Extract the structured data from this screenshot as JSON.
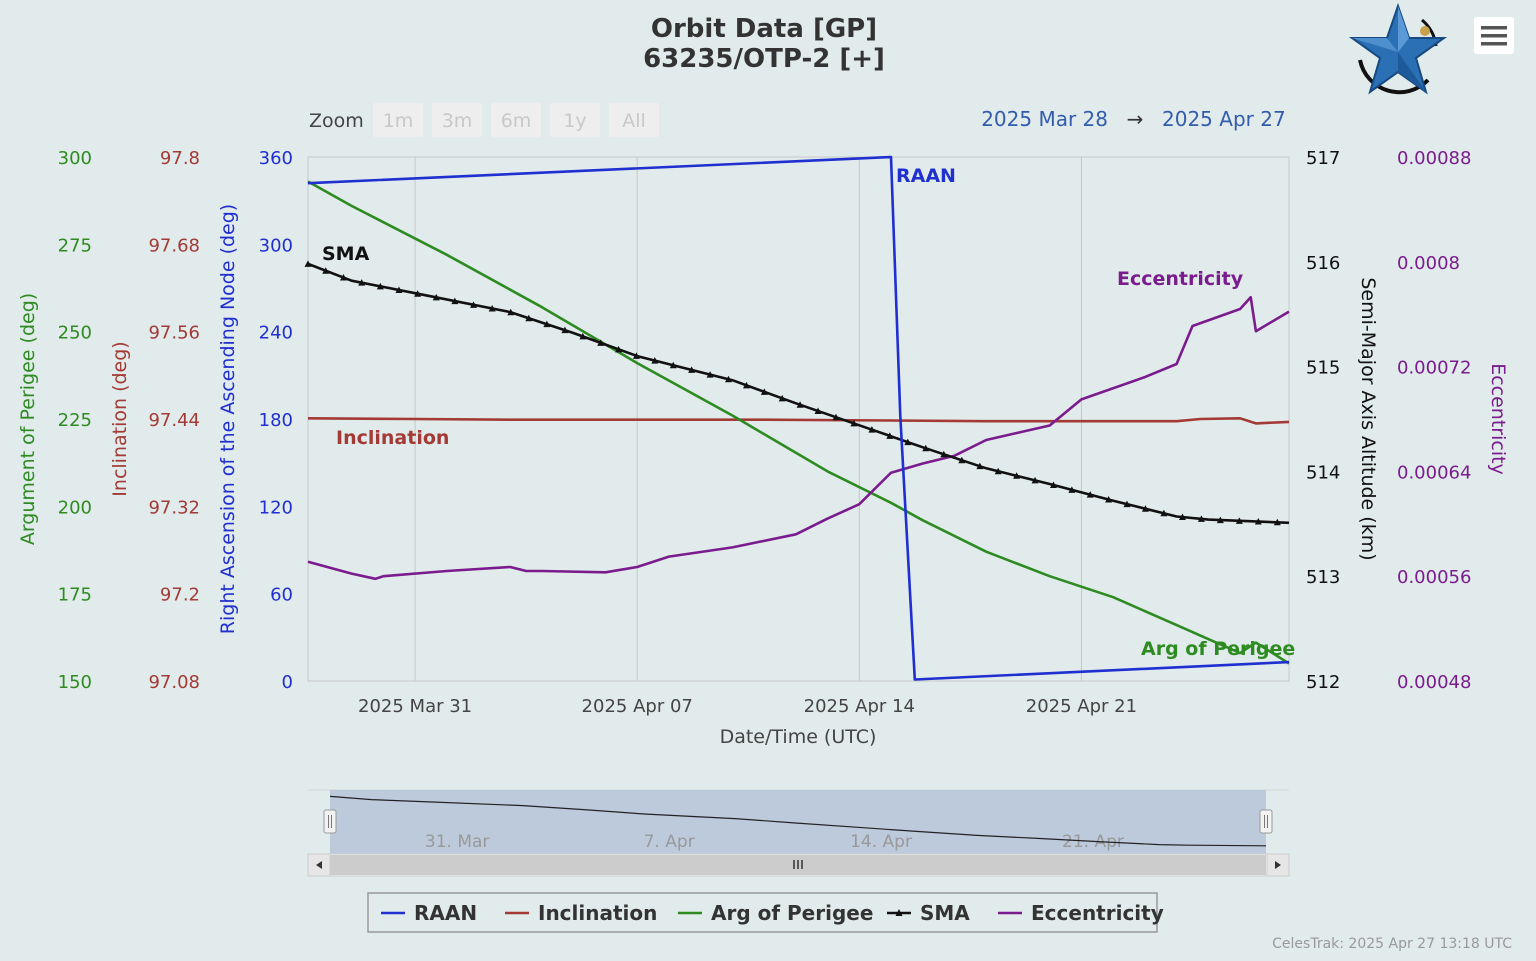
{
  "header": {
    "title_line1": "Orbit Data [GP]",
    "title_line2": "63235/OTP-2 [+]",
    "logo_icon": "celestrak-star-logo-icon",
    "menu_icon": "hamburger-menu-icon"
  },
  "zoom": {
    "label": "Zoom",
    "buttons": [
      "1m",
      "3m",
      "6m",
      "1y",
      "All"
    ]
  },
  "date_range": {
    "from": "2025 Mar 28",
    "arrow": "→",
    "to": "2025 Apr 27"
  },
  "chart_data": {
    "type": "line",
    "x_axis": {
      "title": "Date/Time (UTC)",
      "range": [
        "2025-03-27T15:00",
        "2025-04-27T13:00"
      ],
      "tick_labels": [
        "2025 Mar 31",
        "2025 Apr 07",
        "2025 Apr 14",
        "2025 Apr 21"
      ],
      "tick_dates": [
        "2025-03-31",
        "2025-04-07",
        "2025-04-14",
        "2025-04-21"
      ]
    },
    "y_axes": [
      {
        "id": "aop",
        "title": "Argument of Perigee (deg)",
        "min": 150,
        "max": 300,
        "ticks": [
          "300",
          "275",
          "250",
          "225",
          "200",
          "175",
          "150"
        ],
        "color": "#2e8b22",
        "side": "left"
      },
      {
        "id": "inc",
        "title": "Inclination (deg)",
        "min": 97.08,
        "max": 97.8,
        "ticks": [
          "97.8",
          "97.68",
          "97.56",
          "97.44",
          "97.32",
          "97.2",
          "97.08"
        ],
        "color": "#a33a35",
        "side": "left"
      },
      {
        "id": "raan",
        "title": "Right Ascension of the Ascending Node (deg)",
        "min": 0,
        "max": 360,
        "ticks": [
          "360",
          "300",
          "240",
          "180",
          "120",
          "60",
          "0"
        ],
        "color": "#1f2fd0",
        "side": "left"
      },
      {
        "id": "sma",
        "title": "Semi-Major Axis Altitude (km)",
        "min": 512,
        "max": 517,
        "ticks": [
          "517",
          "516",
          "515",
          "514",
          "513",
          "512"
        ],
        "color": "#111111",
        "side": "right"
      },
      {
        "id": "ecc",
        "title": "Eccentricity",
        "min": 0.00048,
        "max": 0.00088,
        "ticks": [
          "0.00088",
          "0.0008",
          "0.00072",
          "0.00064",
          "0.00056",
          "0.00048"
        ],
        "color": "#7b1c8e",
        "side": "right"
      }
    ],
    "grid": "vertical lines at x tick dates",
    "series": [
      {
        "name": "RAAN",
        "axis": "raan",
        "color": "#1f2fd0",
        "marker": "none",
        "x": [
          "2025-03-27T15:00",
          "2025-04-15T00:00",
          "2025-04-15T07:00",
          "2025-04-15T18:00",
          "2025-04-27T13:00"
        ],
        "y": [
          342,
          360,
          182,
          1,
          13
        ]
      },
      {
        "name": "Inclination",
        "axis": "inc",
        "color": "#a33a35",
        "marker": "none",
        "x": [
          "2025-03-27T15:00",
          "2025-03-31",
          "2025-04-03",
          "2025-04-07",
          "2025-04-11",
          "2025-04-15",
          "2025-04-18",
          "2025-04-21",
          "2025-04-24",
          "2025-04-24T18:00",
          "2025-04-26",
          "2025-04-26T12:00",
          "2025-04-27T13:00"
        ],
        "y": [
          97.441,
          97.44,
          97.439,
          97.439,
          97.439,
          97.438,
          97.437,
          97.437,
          97.437,
          97.44,
          97.441,
          97.434,
          97.436
        ]
      },
      {
        "name": "Arg of Perigee",
        "axis": "aop",
        "color": "#2e8b22",
        "marker": "none",
        "x": [
          "2025-03-27T15:00",
          "2025-03-29",
          "2025-04-01",
          "2025-04-04",
          "2025-04-07",
          "2025-04-10",
          "2025-04-13",
          "2025-04-15",
          "2025-04-16",
          "2025-04-18",
          "2025-04-20",
          "2025-04-22",
          "2025-04-24",
          "2025-04-24T12:00",
          "2025-04-26",
          "2025-04-26T12:00",
          "2025-04-27T13:00"
        ],
        "y": [
          293,
          286,
          272,
          257,
          241,
          226,
          210,
          201,
          196,
          187,
          180,
          174,
          166,
          164,
          158,
          161,
          155
        ]
      },
      {
        "name": "SMA",
        "axis": "sma",
        "color": "#111111",
        "marker": "triangle",
        "x": [
          "2025-03-27T15:00",
          "2025-03-29",
          "2025-03-31",
          "2025-04-03",
          "2025-04-05",
          "2025-04-07",
          "2025-04-10",
          "2025-04-12",
          "2025-04-14",
          "2025-04-16",
          "2025-04-18",
          "2025-04-20",
          "2025-04-22",
          "2025-04-24",
          "2025-04-25",
          "2025-04-27T13:00"
        ],
        "y": [
          515.98,
          515.82,
          515.7,
          515.52,
          515.32,
          515.1,
          514.87,
          514.65,
          514.44,
          514.23,
          514.03,
          513.88,
          513.72,
          513.57,
          513.54,
          513.51
        ]
      },
      {
        "name": "Eccentricity",
        "axis": "ecc",
        "color": "#7b1c8e",
        "marker": "none",
        "x": [
          "2025-03-27T15:00",
          "2025-03-29",
          "2025-03-29T18:00",
          "2025-03-30",
          "2025-04-01",
          "2025-04-03",
          "2025-04-03T12:00",
          "2025-04-04",
          "2025-04-06",
          "2025-04-07",
          "2025-04-08",
          "2025-04-10",
          "2025-04-12",
          "2025-04-13",
          "2025-04-14",
          "2025-04-15",
          "2025-04-16",
          "2025-04-17",
          "2025-04-18",
          "2025-04-20",
          "2025-04-21",
          "2025-04-23",
          "2025-04-24",
          "2025-04-24T12:00",
          "2025-04-26",
          "2025-04-26T08:00",
          "2025-04-26T12:00",
          "2025-04-27T13:00"
        ],
        "y": [
          0.000571,
          0.000562,
          0.000558,
          0.00056,
          0.000564,
          0.000567,
          0.000564,
          0.000564,
          0.000563,
          0.000567,
          0.000575,
          0.000582,
          0.000592,
          0.000604,
          0.000615,
          0.000639,
          0.000646,
          0.000652,
          0.000664,
          0.000675,
          0.000695,
          0.000712,
          0.000722,
          0.000751,
          0.000764,
          0.000773,
          0.000747,
          0.000762
        ]
      }
    ],
    "series_labels": [
      {
        "series": "RAAN",
        "text": "RAAN"
      },
      {
        "series": "SMA",
        "text": "SMA"
      },
      {
        "series": "Inclination",
        "text": "Inclination"
      },
      {
        "series": "Eccentricity",
        "text": "Eccentricity"
      },
      {
        "series": "Arg of Perigee",
        "text": "Arg of Perigee"
      }
    ],
    "legend": {
      "placement": "bottom-center",
      "items": [
        {
          "name": "RAAN",
          "color": "#1f2fd0"
        },
        {
          "name": "Inclination",
          "color": "#a33a35"
        },
        {
          "name": "Arg of Perigee",
          "color": "#2e8b22"
        },
        {
          "name": "SMA",
          "color": "#111111"
        },
        {
          "name": "Eccentricity",
          "color": "#7b1c8e"
        }
      ]
    }
  },
  "navigator": {
    "tick_labels": [
      "31. Mar",
      "7. Apr",
      "14. Apr",
      "21. Apr"
    ],
    "tick_dates": [
      "2025-03-31",
      "2025-04-07",
      "2025-04-14",
      "2025-04-21"
    ],
    "scroll_left_icon": "arrow-left-icon",
    "scroll_right_icon": "arrow-right-icon",
    "grip_icon": "grip-icon"
  },
  "credit": "CelesTrak: 2025 Apr 27 13:18 UTC"
}
